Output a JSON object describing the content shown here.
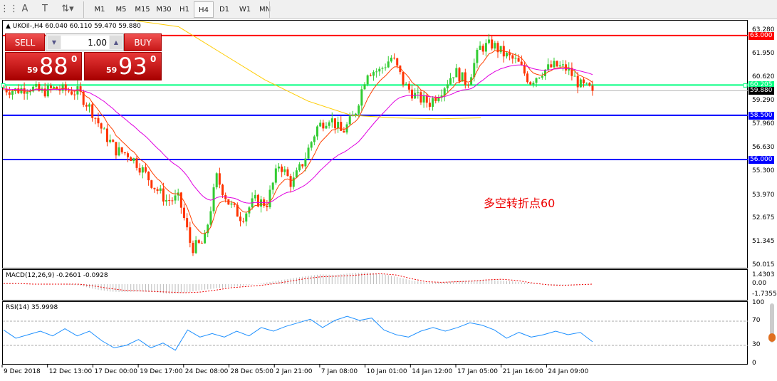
{
  "toolbar": {
    "icons": [
      "grid-icon",
      "text-a-icon",
      "text-box-icon",
      "arrows-icon"
    ],
    "timeframes": [
      "M1",
      "M5",
      "M15",
      "M30",
      "H1",
      "H4",
      "D1",
      "W1",
      "MN"
    ],
    "selected": "H4"
  },
  "chart": {
    "title": "UKOil-,H4",
    "ohlc": "60.040 60.110 59.470 59.880",
    "price_ticks": [
      "63.280",
      "61.950",
      "60.620",
      "59.290",
      "57.960",
      "56.630",
      "55.300",
      "53.970",
      "52.675",
      "51.345",
      "50.015"
    ],
    "levels": [
      {
        "label": "63.000",
        "price": 63.0,
        "color": "#ff0000"
      },
      {
        "label": "60.205",
        "price": 60.205,
        "color": "#00ff7f"
      },
      {
        "label": "59.880",
        "price": 59.88,
        "color": "#000000"
      },
      {
        "label": "58.500",
        "price": 58.5,
        "color": "#0000ff"
      },
      {
        "label": "56.000",
        "price": 56.0,
        "color": "#0000ff"
      }
    ],
    "annotation": "多空转折点60",
    "bull_color": "#33cc33",
    "bear_color": "#ff3300"
  },
  "trade_panel": {
    "sell_label": "SELL",
    "buy_label": "BUY",
    "lots": "1.00",
    "sell_prefix": "59",
    "sell_big": "88",
    "sell_sup": "0",
    "buy_prefix": "59",
    "buy_big": "93",
    "buy_sup": "0"
  },
  "macd": {
    "title": "MACD(12,26,9) -0.2601 -0.0928",
    "ticks": [
      "1.4303",
      "0.00",
      "-1.7355"
    ]
  },
  "rsi": {
    "title": "RSI(14) 35.9998",
    "ticks": [
      "100",
      "70",
      "30",
      "0"
    ]
  },
  "time_labels": [
    "9 Dec 2018",
    "12 Dec 13:00",
    "17 Dec 00:00",
    "19 Dec 17:00",
    "24 Dec 08:00",
    "28 Dec 05:00",
    "2 Jan 21:00",
    "7 Jan 08:00",
    "10 Jan 01:00",
    "14 Jan 12:00",
    "17 Jan 05:00",
    "21 Jan 16:00",
    "24 Jan 09:00"
  ],
  "chart_data": {
    "type": "candlestick",
    "symbol": "UKOil-",
    "timeframe": "H4",
    "ylim": [
      50.015,
      63.28
    ],
    "close_path": [
      60.0,
      59.9,
      60.1,
      59.8,
      60.0,
      59.9,
      59.8,
      58.8,
      57.5,
      56.5,
      56.3,
      55.5,
      54.5,
      53.7,
      53.8,
      51.0,
      51.3,
      55.0,
      53.5,
      52.7,
      53.7,
      53.5,
      55.8,
      54.6,
      56.0,
      57.8,
      58.4,
      57.5,
      58.5,
      61.0,
      61.0,
      61.8,
      60.2,
      59.5,
      59.2,
      60.0,
      61.0,
      60.3,
      62.3,
      62.5,
      61.9,
      61.5,
      60.4,
      61.0,
      61.3,
      61.1,
      60.2,
      59.88
    ],
    "ma_slow_yellow": [
      64.5,
      63.5,
      62.0,
      60.5,
      59.3,
      58.5,
      58.35,
      58.3,
      58.35
    ],
    "rsi_values": [
      55.5,
      41.8,
      47.6,
      53.5,
      45.7,
      57.5,
      45.7,
      53.5,
      37.8,
      26,
      30,
      39.8,
      26,
      33.9,
      22,
      55.5,
      43.7,
      49.6,
      43.7,
      53.5,
      45.7,
      59.5,
      53.5,
      61.4,
      67.3,
      73.2,
      59.5,
      71.3,
      78,
      71.3,
      75.2,
      55.5,
      47.6,
      43.7,
      53.5,
      59.5,
      53.5,
      59.5,
      67.3,
      63.4,
      55.5,
      41.8,
      51.5,
      43.7,
      47.6,
      53.5,
      47.6,
      51.5,
      36
    ],
    "macd_hist": [
      0.1,
      0.05,
      0,
      0,
      0,
      -0.2,
      -0.8,
      -1.2,
      -1.3,
      -1.2,
      -1.3,
      -1.6,
      -1.4,
      -1.0,
      -0.7,
      -0.5,
      -0.2,
      0.1,
      0.5,
      0.9,
      1.3,
      1.6,
      1.5,
      1.8,
      1.9,
      1.7,
      1.2,
      0.6,
      0.3,
      0.3,
      0.5,
      0.6,
      0.7,
      0.6,
      0.4,
      0.1,
      -0.1,
      -0.1,
      0,
      0
    ],
    "macd_signal": [
      0.1,
      0.1,
      0,
      0,
      0,
      0,
      -0.3,
      -0.7,
      -1.0,
      -1.1,
      -1.2,
      -1.3,
      -1.4,
      -1.3,
      -1.0,
      -0.6,
      -0.4,
      -0.2,
      0.1,
      0.5,
      0.9,
      1.2,
      1.3,
      1.4,
      1.6,
      1.7,
      1.5,
      0.9,
      0.4,
      0.3,
      0.4,
      0.5,
      0.7,
      0.8,
      0.6,
      0.2,
      -0.1,
      -0.2,
      -0.1,
      0
    ]
  }
}
